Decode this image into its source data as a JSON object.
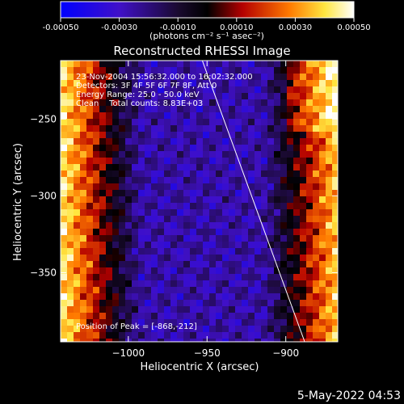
{
  "colorbar": {
    "tick_labels": [
      "-0.00050",
      "-0.00030",
      "-0.00010",
      "0.00010",
      "0.00030",
      "0.00050"
    ],
    "tick_values": [
      -0.0005,
      -0.0003,
      -0.0001,
      0.0001,
      0.0003,
      0.0005
    ],
    "range": [
      -0.0005,
      0.0005
    ],
    "unit_label": "(photons cm⁻² s⁻¹ asec⁻²)",
    "colors": [
      "#0000ff",
      "#5a1ab4",
      "#000000",
      "#b40000",
      "#ff7a00",
      "#ffe640",
      "#ffffff"
    ]
  },
  "plot": {
    "title": "Reconstructed RHESSI Image",
    "annotation_lines": [
      "23-Nov-2004 15:56:32.000 to 16:02:32.000",
      "Detectors: 3F 4F 5F 6F 7F 8F, Att 0",
      "Energy Range: 25.0 - 50.0 keV",
      "Clean    Total counts: 8.83E+03"
    ],
    "peak_text": "Position of Peak = [-868,-212]"
  },
  "footer": {
    "date": "5-May-2022 04:53"
  },
  "chart_data": {
    "type": "heatmap",
    "title": "Reconstructed RHESSI Image",
    "xlabel": "Heliocentric X (arcsec)",
    "ylabel": "Heliocentric Y (arcsec)",
    "xlim": [
      -1043,
      -867
    ],
    "ylim": [
      -395,
      -212
    ],
    "x_ticks": [
      -1000,
      -950,
      -900
    ],
    "x_tick_labels": [
      "−1000",
      "−950",
      "−900"
    ],
    "y_ticks": [
      -250,
      -300,
      -350
    ],
    "y_tick_labels": [
      "−250",
      "−300",
      "−350"
    ],
    "peak_position": [
      -868,
      -212
    ],
    "limb_line": [
      [
        -953,
        -212
      ],
      [
        -888,
        -395
      ]
    ],
    "value_unit": "photons cm^-2 s^-1 asec^-2",
    "value_range": [
      -0.0005,
      0.0005
    ],
    "grid": false
  }
}
